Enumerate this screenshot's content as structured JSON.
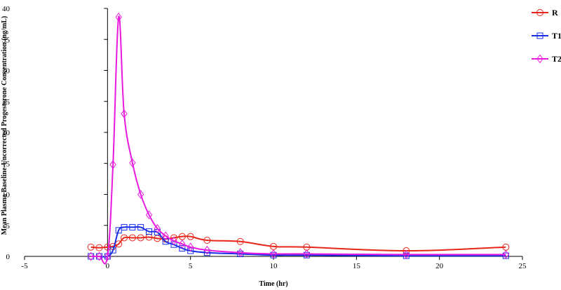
{
  "chart_data": {
    "type": "line",
    "title": "",
    "xlabel": "Time (hr)",
    "ylabel": "Mean Plasma Baseline-Uncorrected Progesterone Concentration (ng/mL)",
    "xlim": [
      -5,
      25
    ],
    "ylim": [
      0,
      40
    ],
    "x_ticks": [
      -5,
      0,
      5,
      10,
      15,
      20,
      25
    ],
    "y_ticks": [
      0,
      5,
      10,
      15,
      20,
      25,
      30,
      35,
      40
    ],
    "legend_position": "top-right",
    "grid": false,
    "series": [
      {
        "name": "R",
        "color": "#e8261a",
        "marker": "circle",
        "x": [
          -1,
          -0.5,
          0,
          0.33,
          0.67,
          1,
          1.5,
          2,
          2.5,
          3,
          3.5,
          4,
          4.5,
          5,
          6,
          8,
          10,
          12,
          18,
          24
        ],
        "y": [
          1.5,
          1.4,
          1.5,
          1.6,
          2.0,
          3.0,
          3.0,
          3.0,
          3.1,
          2.9,
          2.8,
          3.0,
          3.2,
          3.2,
          2.6,
          2.4,
          1.6,
          1.5,
          0.9,
          1.5
        ]
      },
      {
        "name": "T1",
        "color": "#1a2ee8",
        "marker": "square",
        "x": [
          -1,
          -0.5,
          0,
          0.33,
          0.67,
          1,
          1.5,
          2,
          2.5,
          3,
          3.5,
          4,
          4.5,
          5,
          6,
          8,
          10,
          12,
          18,
          24
        ],
        "y": [
          0,
          0,
          0,
          1.0,
          4.2,
          4.7,
          4.7,
          4.7,
          4.0,
          3.9,
          2.4,
          1.9,
          1.3,
          0.9,
          0.6,
          0.4,
          0.2,
          0.2,
          0.1,
          0.1
        ]
      },
      {
        "name": "T2",
        "color": "#e81ae0",
        "marker": "diamond",
        "x": [
          -1,
          -0.5,
          0,
          0.33,
          0.67,
          1,
          1.5,
          2,
          2.5,
          3,
          3.5,
          4,
          4.5,
          5,
          6,
          8,
          10,
          12,
          18,
          24
        ],
        "y": [
          0,
          0,
          0,
          14.8,
          38.6,
          23.0,
          15.1,
          10.0,
          6.7,
          4.5,
          3.3,
          2.5,
          2.0,
          1.5,
          1.0,
          0.6,
          0.4,
          0.4,
          0.3,
          0.3
        ]
      }
    ]
  }
}
